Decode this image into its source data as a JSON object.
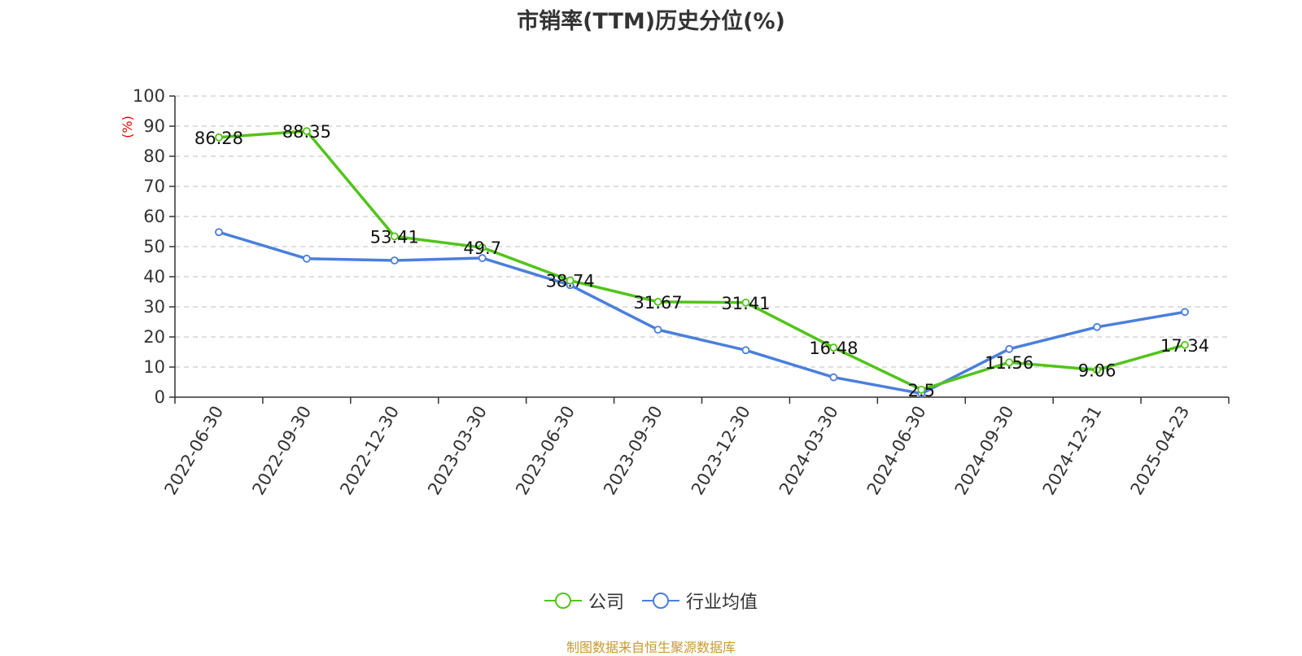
{
  "colors": {
    "company": "#52c41a",
    "industry": "#4a7fdc",
    "ylabel": "#ee0000",
    "source": "#c99a2e",
    "grid": "#cccccc",
    "axis": "#333333"
  },
  "legend": {
    "company_label": "公司",
    "industry_label": "行业均值"
  },
  "source_text": "制图数据来自恒生聚源数据库",
  "chart_data": {
    "type": "line",
    "title": "市销率(TTM)历史分位(%)",
    "xlabel": "",
    "ylabel": "(%)",
    "ylim": [
      0,
      100
    ],
    "yticks": [
      0,
      10,
      20,
      30,
      40,
      50,
      60,
      70,
      80,
      90,
      100
    ],
    "grid": true,
    "legend_position": "bottom",
    "categories": [
      "2022-06-30",
      "2022-09-30",
      "2022-12-30",
      "2023-03-30",
      "2023-06-30",
      "2023-09-30",
      "2023-12-30",
      "2024-03-30",
      "2024-06-30",
      "2024-09-30",
      "2024-12-31",
      "2025-04-23"
    ],
    "series": [
      {
        "name": "公司",
        "values": [
          86.28,
          88.35,
          53.41,
          49.7,
          38.74,
          31.67,
          31.41,
          16.48,
          2.5,
          11.56,
          9.06,
          17.34
        ],
        "data_labels": [
          "86.28",
          "88.35",
          "53.41",
          "49.7",
          "38.74",
          "31.67",
          "31.41",
          "16.48",
          "2.5",
          "11.56",
          "9.06",
          "17.34"
        ]
      },
      {
        "name": "行业均值",
        "values": [
          54.8,
          46.0,
          45.4,
          46.2,
          37.2,
          22.4,
          15.6,
          6.6,
          1.2,
          16.0,
          23.3,
          28.3
        ]
      }
    ]
  }
}
